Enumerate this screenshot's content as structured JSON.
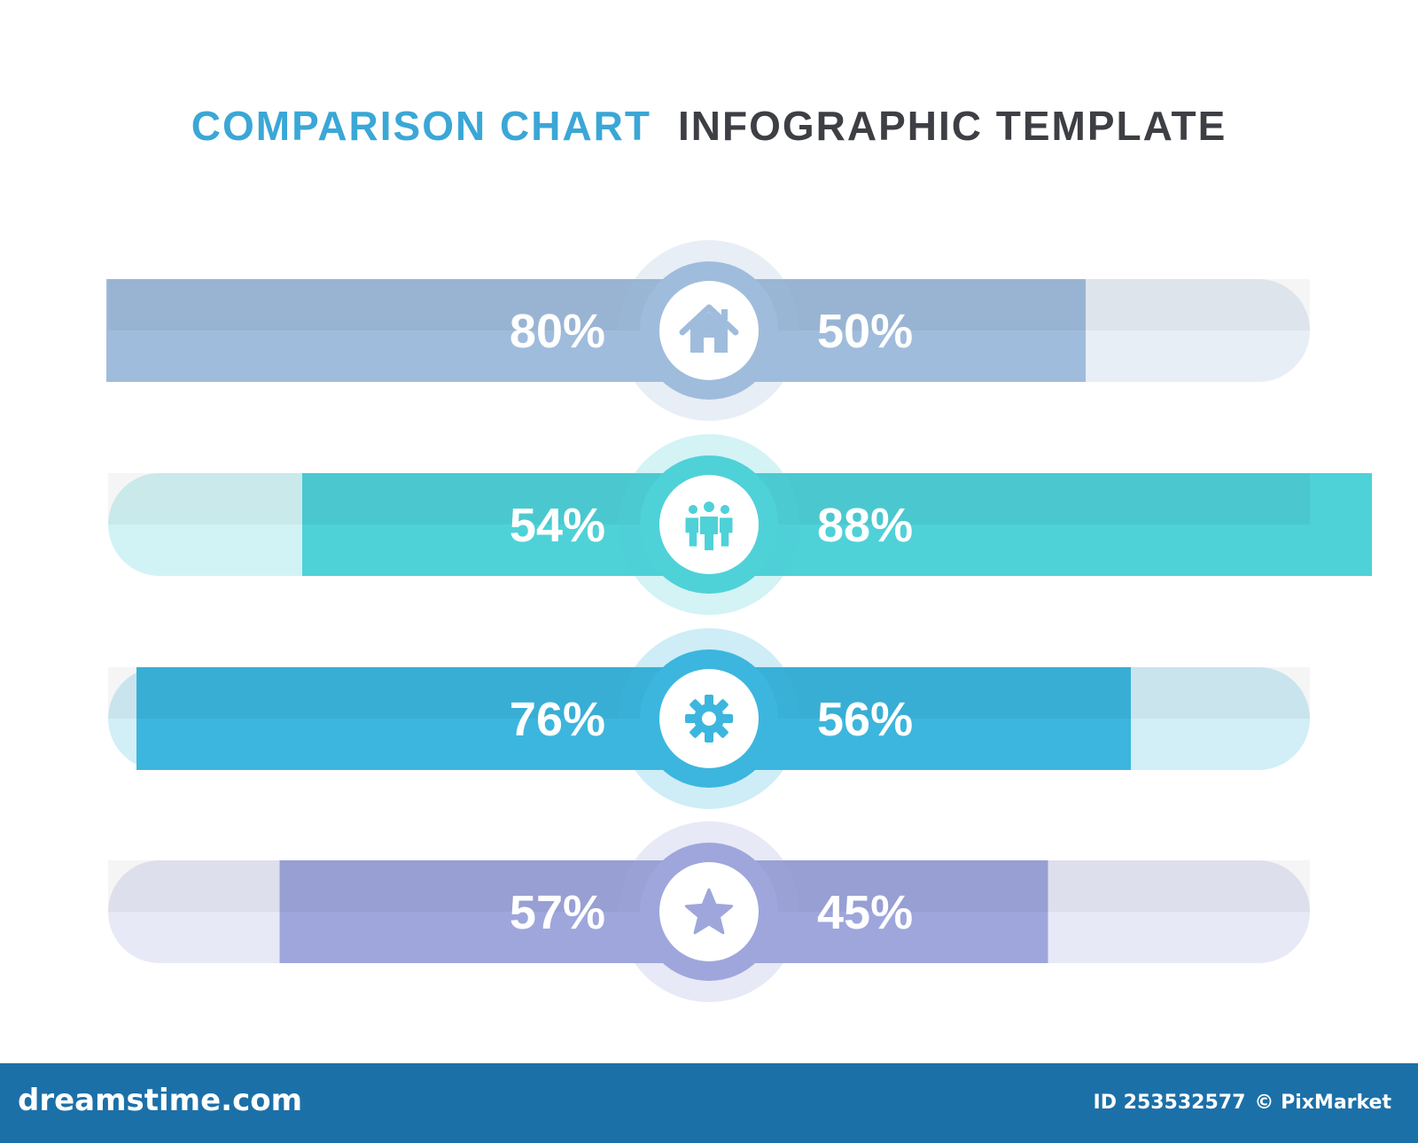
{
  "title": {
    "accent": "COMPARISON CHART",
    "main": "INFOGRAPHIC TEMPLATE"
  },
  "chart_data": {
    "type": "bar",
    "orientation": "diverging-horizontal",
    "value_unit": "%",
    "xlim": [
      0,
      100
    ],
    "rows": [
      {
        "icon": "house-icon",
        "left": 80,
        "right": 50,
        "left_label": "80%",
        "right_label": "50%",
        "color": "#a0bcdc",
        "track": "#e7eef6"
      },
      {
        "icon": "team-icon",
        "left": 54,
        "right": 88,
        "left_label": "54%",
        "right_label": "88%",
        "color": "#4fd1d8",
        "track": "#d2f3f5"
      },
      {
        "icon": "gear-icon",
        "left": 76,
        "right": 56,
        "left_label": "76%",
        "right_label": "56%",
        "color": "#3cb6de",
        "track": "#d2eef7"
      },
      {
        "icon": "star-icon",
        "left": 57,
        "right": 45,
        "left_label": "57%",
        "right_label": "45%",
        "color": "#9ea6dc",
        "track": "#e8e9f6"
      }
    ]
  },
  "footer": {
    "brand": "dreamstime.com",
    "id_text": "ID 253532577",
    "credit": "© PixMarket",
    "color": "#1c70a8"
  }
}
